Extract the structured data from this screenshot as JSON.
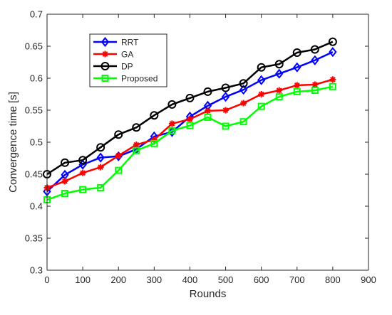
{
  "chart_data": {
    "type": "line",
    "title": "",
    "xlabel": "Rounds",
    "ylabel": "Convergence time [s]",
    "xlim": [
      0,
      900
    ],
    "ylim": [
      0.3,
      0.7
    ],
    "x_ticks": [
      0,
      100,
      200,
      300,
      400,
      500,
      600,
      700,
      800,
      900
    ],
    "y_ticks": [
      0.3,
      0.35,
      0.4,
      0.45,
      0.5,
      0.55,
      0.6,
      0.65,
      0.7
    ],
    "x_tick_labels": [
      "0",
      "100",
      "200",
      "300",
      "400",
      "500",
      "600",
      "700",
      "800",
      "900"
    ],
    "y_tick_labels": [
      "0.3",
      "0.35",
      "0.4",
      "0.45",
      "0.5",
      "0.55",
      "0.6",
      "0.65",
      "0.7"
    ],
    "grid": false,
    "legend_position": "top-left",
    "x": [
      0,
      50,
      100,
      150,
      200,
      250,
      300,
      350,
      400,
      450,
      500,
      550,
      600,
      650,
      700,
      750,
      800
    ],
    "series": [
      {
        "name": "RRT",
        "color": "#0000ff",
        "marker": "diamond",
        "values": [
          0.423,
          0.449,
          0.465,
          0.476,
          0.478,
          0.489,
          0.509,
          0.516,
          0.54,
          0.557,
          0.571,
          0.582,
          0.597,
          0.607,
          0.617,
          0.628,
          0.641
        ]
      },
      {
        "name": "GA",
        "color": "#ff0000",
        "marker": "asterisk",
        "values": [
          0.429,
          0.439,
          0.452,
          0.461,
          0.479,
          0.496,
          0.504,
          0.529,
          0.536,
          0.549,
          0.55,
          0.561,
          0.575,
          0.581,
          0.589,
          0.59,
          0.598
        ]
      },
      {
        "name": "DP",
        "color": "#000000",
        "marker": "circle",
        "values": [
          0.45,
          0.468,
          0.472,
          0.492,
          0.512,
          0.523,
          0.542,
          0.559,
          0.569,
          0.579,
          0.585,
          0.592,
          0.617,
          0.622,
          0.64,
          0.645,
          0.657
        ]
      },
      {
        "name": "Proposed",
        "color": "#00ff00",
        "marker": "square",
        "values": [
          0.41,
          0.42,
          0.426,
          0.429,
          0.456,
          0.487,
          0.498,
          0.518,
          0.526,
          0.539,
          0.525,
          0.532,
          0.556,
          0.571,
          0.579,
          0.581,
          0.587
        ]
      }
    ]
  }
}
